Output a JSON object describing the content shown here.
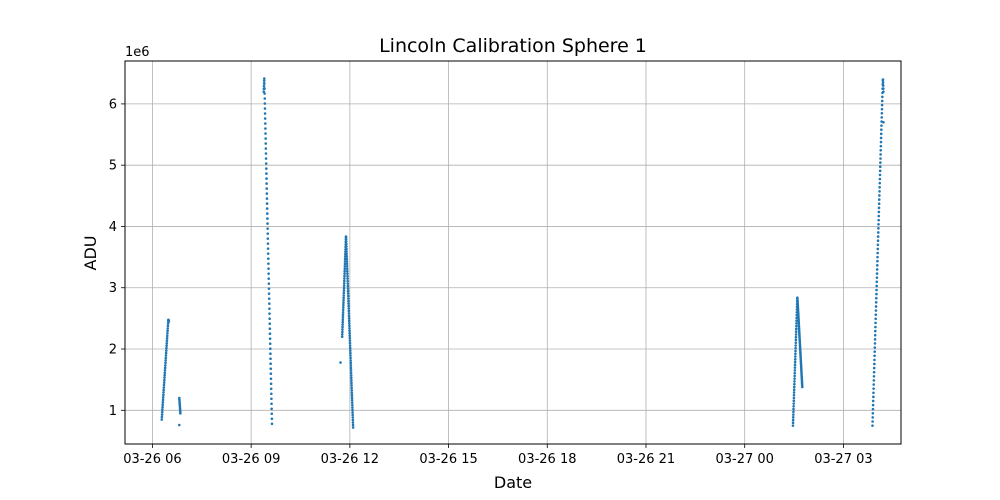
{
  "chart_data": {
    "type": "scatter",
    "title": "Lincoln Calibration Sphere 1",
    "xlabel": "Date",
    "ylabel": "ADU",
    "y_offset_label": "1e6",
    "y_scale_multiplier": 1000000,
    "xlim": [
      "2025-03-26T05:10",
      "2025-03-27T04:45"
    ],
    "ylim": [
      0.45,
      6.7
    ],
    "x_ticks": [
      {
        "t": "2025-03-26T06:00",
        "label": "03-26 06"
      },
      {
        "t": "2025-03-26T09:00",
        "label": "03-26 09"
      },
      {
        "t": "2025-03-26T12:00",
        "label": "03-26 12"
      },
      {
        "t": "2025-03-26T15:00",
        "label": "03-26 15"
      },
      {
        "t": "2025-03-26T18:00",
        "label": "03-26 18"
      },
      {
        "t": "2025-03-26T21:00",
        "label": "03-26 21"
      },
      {
        "t": "2025-03-27T00:00",
        "label": "03-27 00"
      },
      {
        "t": "2025-03-27T03:00",
        "label": "03-27 03"
      }
    ],
    "y_ticks": [
      {
        "v": 1,
        "label": "1"
      },
      {
        "v": 2,
        "label": "2"
      },
      {
        "v": 3,
        "label": "3"
      },
      {
        "v": 4,
        "label": "4"
      },
      {
        "v": 5,
        "label": "5"
      },
      {
        "v": 6,
        "label": "6"
      }
    ],
    "grid": true,
    "marker_color": "#1f77b4",
    "passes": [
      {
        "start": "2025-03-26T06:17",
        "end": "2025-03-26T06:30",
        "peak_time": "2025-03-26T06:29",
        "peak": 2.48,
        "start_value": 0.85,
        "end_value": 2.45,
        "n": 45
      },
      {
        "start": "2025-03-26T06:49",
        "end": "2025-03-26T06:51",
        "peak_time": "2025-03-26T06:49",
        "peak": 1.2,
        "start_value": 1.2,
        "end_value": 0.95,
        "n": 10
      },
      {
        "start": "2025-03-26T09:23",
        "end": "2025-03-26T09:38",
        "peak_time": "2025-03-26T09:24",
        "peak": 6.42,
        "start_value": 6.2,
        "end_value": 0.78,
        "n": 75
      },
      {
        "start": "2025-03-26T11:46",
        "end": "2025-03-26T12:06",
        "peak_time": "2025-03-26T11:53",
        "peak": 3.85,
        "start_value": 2.2,
        "end_value": 0.72,
        "n": 120
      },
      {
        "start": "2025-03-27T01:28",
        "end": "2025-03-27T01:45",
        "peak_time": "2025-03-27T01:36",
        "peak": 2.85,
        "start_value": 0.75,
        "end_value": 1.38,
        "n": 100
      },
      {
        "start": "2025-03-27T03:53",
        "end": "2025-03-27T04:13",
        "peak_time": "2025-03-27T04:12",
        "peak": 6.42,
        "start_value": 0.75,
        "end_value": 6.2,
        "n": 90
      }
    ],
    "points": [
      {
        "t": "2025-03-26T06:49",
        "v": 0.76
      },
      {
        "t": "2025-03-26T11:43",
        "v": 1.78
      },
      {
        "t": "2025-03-27T04:13",
        "v": 5.7
      }
    ]
  }
}
